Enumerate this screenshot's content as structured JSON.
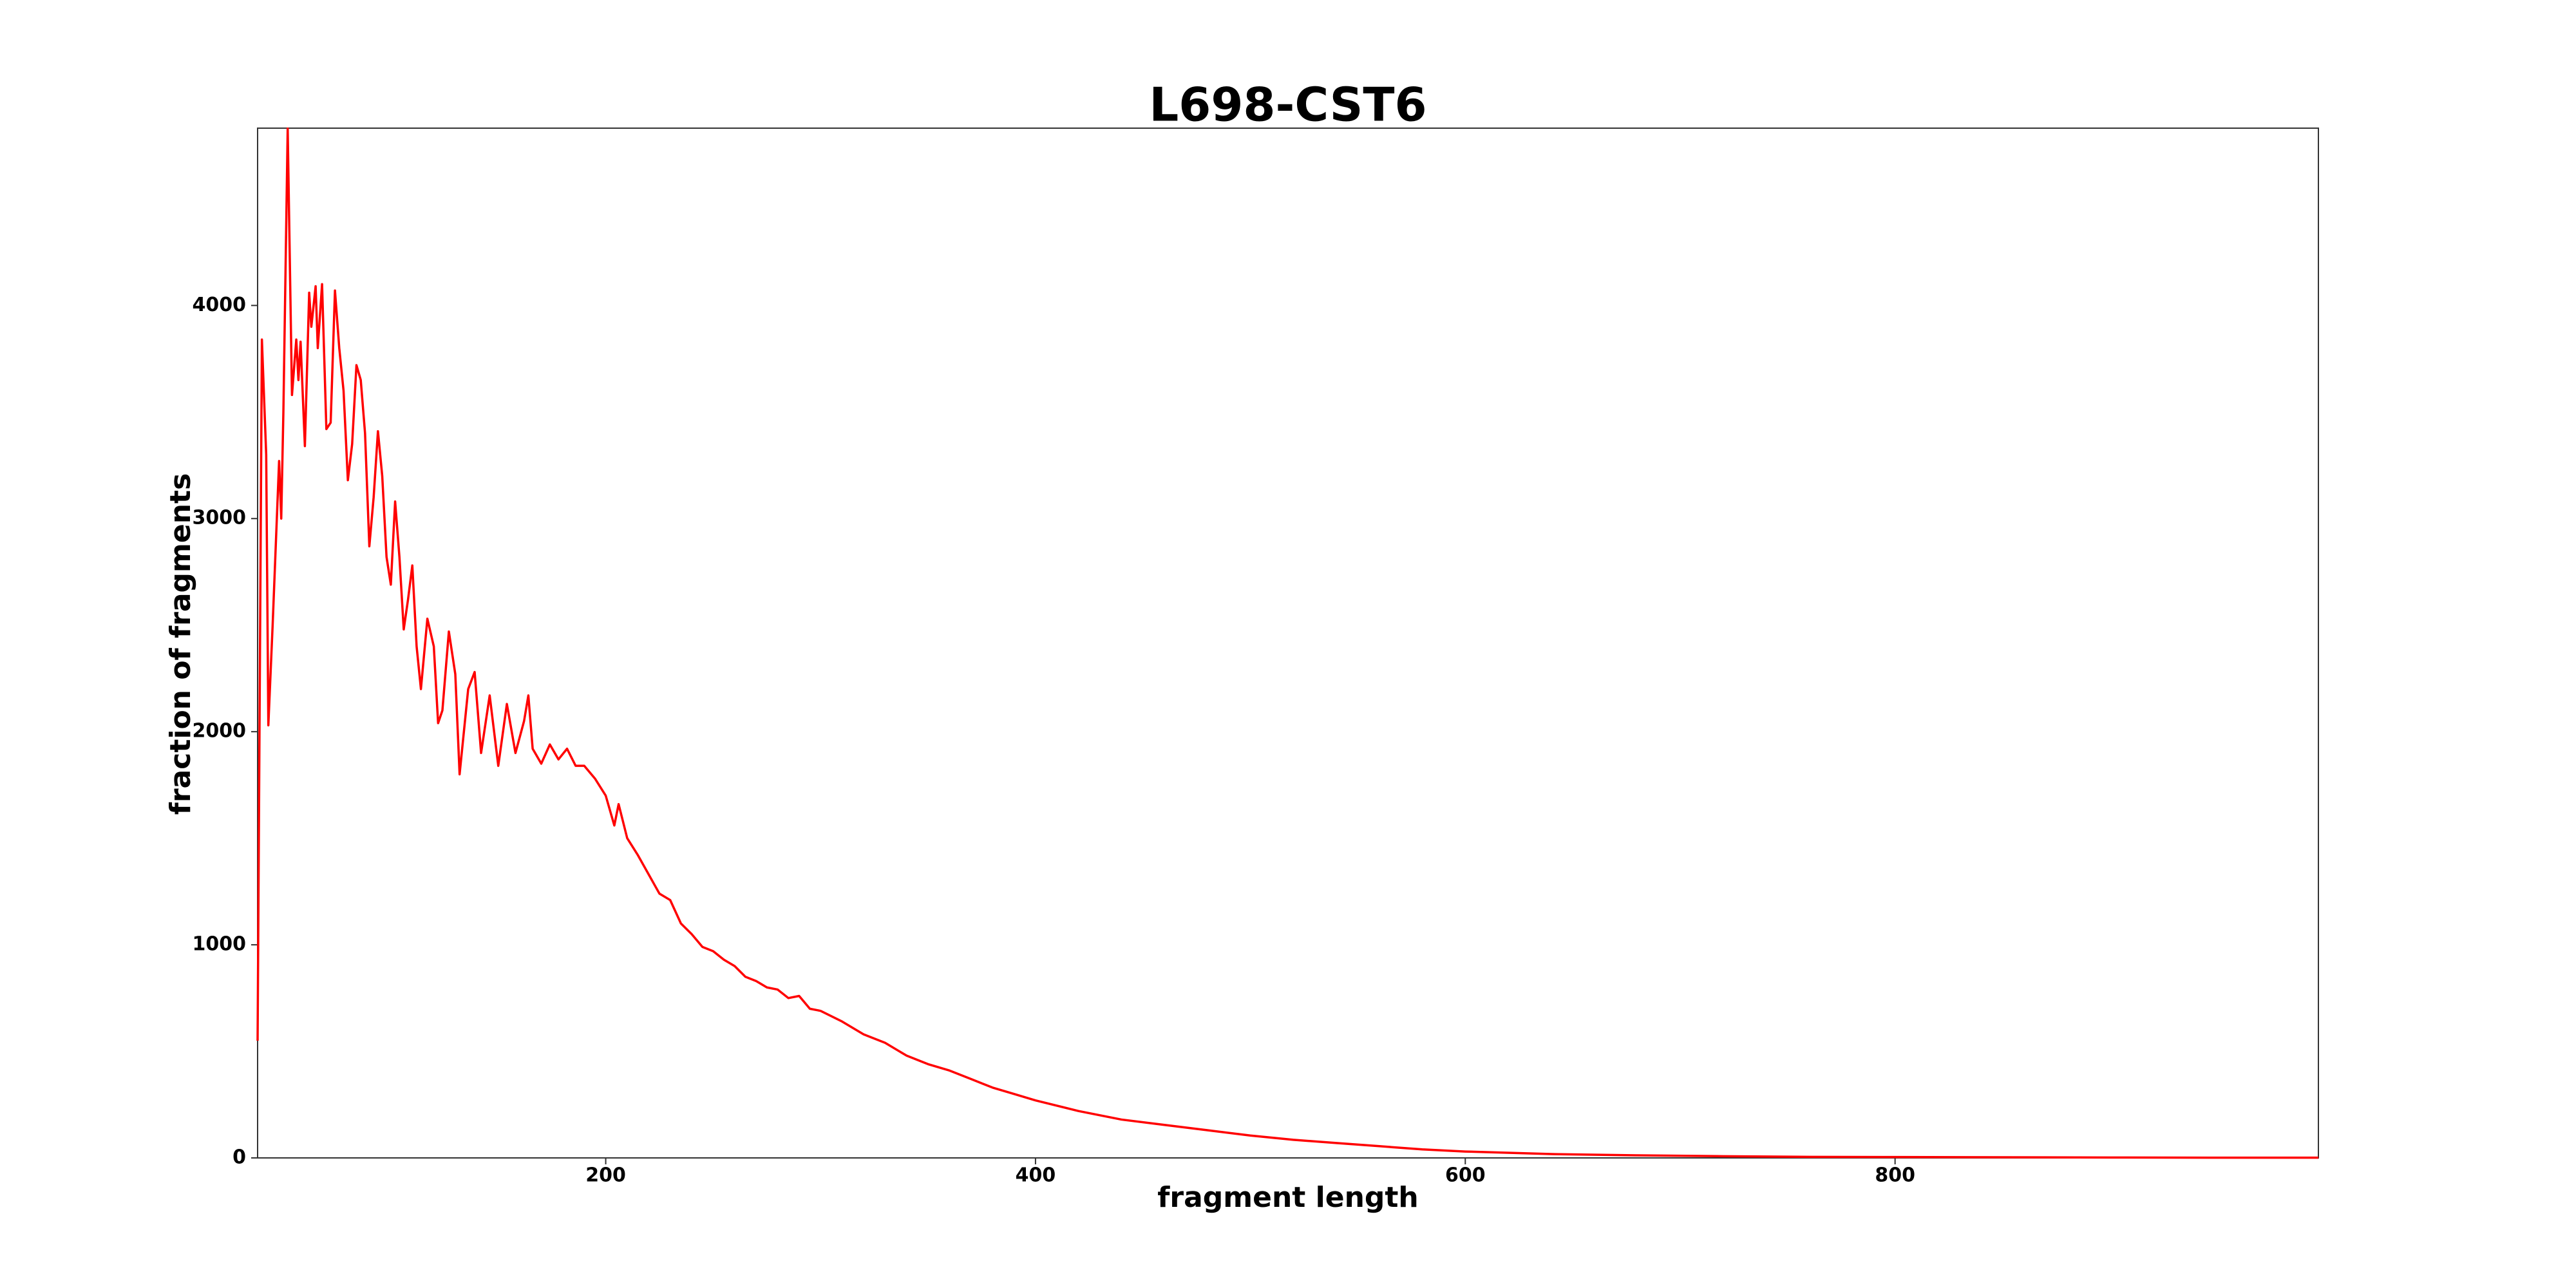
{
  "chart_data": {
    "type": "line",
    "title": "L698-CST6",
    "xlabel": "fragment length",
    "ylabel": "fraction of fragments",
    "x": [
      38,
      40,
      42,
      43,
      45,
      48,
      49,
      50,
      52,
      54,
      56,
      57,
      58,
      60,
      62,
      63,
      65,
      66,
      68,
      70,
      72,
      74,
      76,
      78,
      80,
      82,
      84,
      86,
      88,
      90,
      92,
      94,
      96,
      98,
      100,
      102,
      104,
      106,
      108,
      110,
      112,
      114,
      117,
      120,
      122,
      124,
      127,
      130,
      132,
      134,
      136,
      139,
      142,
      146,
      150,
      154,
      158,
      162,
      164,
      166,
      170,
      174,
      178,
      182,
      186,
      190,
      195,
      200,
      204,
      206,
      210,
      215,
      220,
      225,
      230,
      235,
      240,
      245,
      250,
      255,
      260,
      265,
      270,
      275,
      280,
      285,
      290,
      295,
      300,
      310,
      320,
      330,
      340,
      350,
      360,
      370,
      380,
      390,
      400,
      420,
      440,
      460,
      480,
      500,
      520,
      540,
      560,
      580,
      600,
      640,
      680,
      720,
      760,
      800,
      850,
      900,
      950,
      997
    ],
    "series": [
      {
        "name": "L698-CST6",
        "color": "#ff0000",
        "values": [
          550,
          3840,
          3300,
          2030,
          2500,
          3270,
          3000,
          3500,
          4830,
          3580,
          3840,
          3650,
          3830,
          3340,
          4060,
          3900,
          4090,
          3800,
          4100,
          3420,
          3450,
          4070,
          3800,
          3600,
          3180,
          3350,
          3720,
          3650,
          3400,
          2870,
          3100,
          3410,
          3200,
          2820,
          2690,
          3080,
          2820,
          2480,
          2620,
          2780,
          2400,
          2200,
          2530,
          2400,
          2040,
          2100,
          2470,
          2270,
          1800,
          2000,
          2200,
          2280,
          1900,
          2170,
          1840,
          2130,
          1900,
          2050,
          2170,
          1920,
          1850,
          1940,
          1870,
          1920,
          1840,
          1840,
          1780,
          1700,
          1560,
          1660,
          1500,
          1420,
          1330,
          1240,
          1210,
          1100,
          1050,
          990,
          970,
          930,
          900,
          850,
          830,
          800,
          790,
          750,
          760,
          700,
          690,
          640,
          580,
          540,
          480,
          440,
          410,
          370,
          330,
          300,
          270,
          220,
          180,
          155,
          130,
          105,
          85,
          70,
          55,
          40,
          30,
          18,
          12,
          8,
          5,
          4,
          3,
          2,
          1,
          1
        ]
      }
    ],
    "xlim": [
      38,
      997
    ],
    "ylim": [
      0,
      4832
    ],
    "xticks": [
      200,
      400,
      600,
      800
    ],
    "yticks": [
      0,
      1000,
      2000,
      3000,
      4000
    ]
  }
}
